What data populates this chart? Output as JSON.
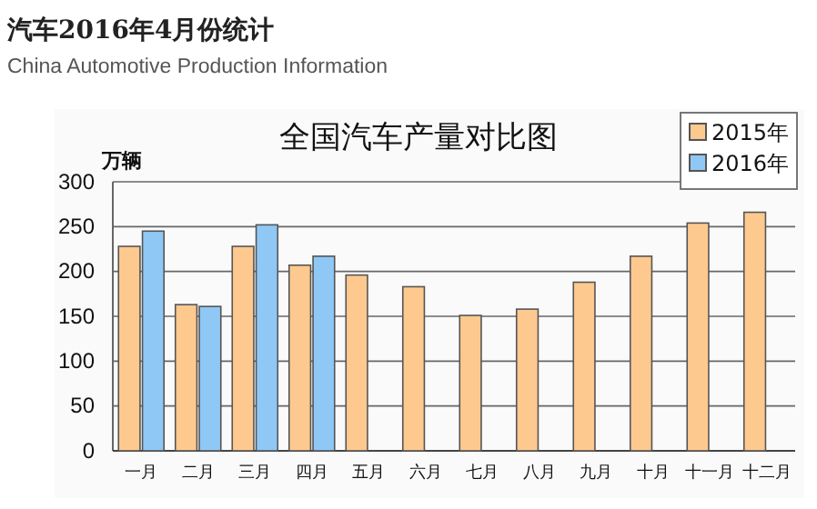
{
  "chart_data": {
    "type": "bar",
    "title": "汽车2016年4月份统计",
    "subtitle": "China Automotive Production Information",
    "annotations": [
      "全国汽车产量对比图"
    ],
    "ylabel": "万辆",
    "categories": [
      "一月",
      "二月",
      "三月",
      "四月",
      "五月",
      "六月",
      "七月",
      "八月",
      "九月",
      "十月",
      "十一月",
      "十二月"
    ],
    "series": [
      {
        "name": "2015年",
        "color": "#fdc98f",
        "values": [
          228,
          163,
          228,
          207,
          196,
          183,
          151,
          158,
          188,
          217,
          254,
          266
        ]
      },
      {
        "name": "2016年",
        "color": "#8fc8f5",
        "values": [
          245,
          161,
          252,
          217,
          null,
          null,
          null,
          null,
          null,
          null,
          null,
          null
        ]
      }
    ],
    "ylim": [
      0,
      300
    ],
    "yticks": [
      0,
      50,
      100,
      150,
      200,
      250,
      300
    ],
    "grid": "y",
    "legend": "top right"
  }
}
